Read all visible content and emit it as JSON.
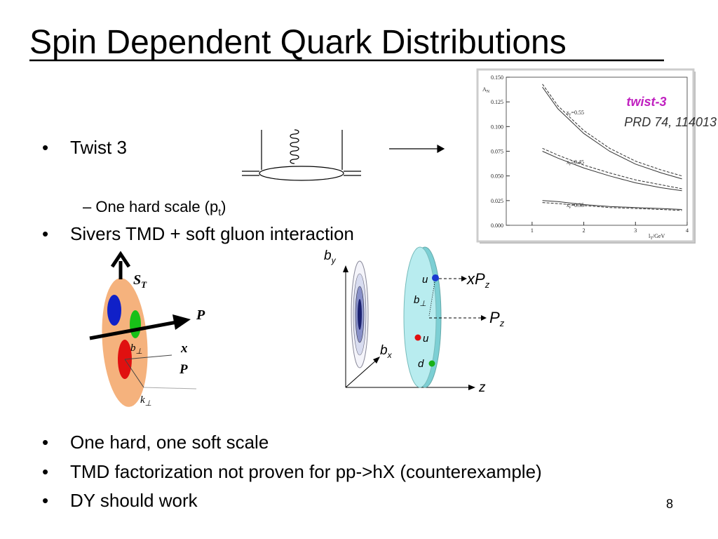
{
  "title": "Spin Dependent Quark Distributions",
  "bullets": [
    "Twist 3",
    "Sivers TMD + soft gluon interaction",
    "One hard, one soft scale",
    "TMD factorization not proven for pp->hX (counterexample)",
    "DY should work"
  ],
  "sub_bullet": [
    "One hard scale (p",
    "t",
    ")"
  ],
  "reference": {
    "label": "twist-3",
    "citation": "PRD 74, 114013"
  },
  "sivers_diagram": {
    "spin": [
      "S",
      "T"
    ],
    "momentum": "P",
    "b_perp": [
      "b",
      "⊥"
    ],
    "x_P": [
      "x",
      "P"
    ],
    "k_perp": [
      "k",
      "⊥"
    ]
  },
  "impact_diagram": {
    "b_y": [
      "b",
      "y"
    ],
    "b_x": [
      "b",
      "x"
    ],
    "z": "z",
    "u_top": "u",
    "xPz": [
      "xP",
      "z"
    ],
    "b_perp": [
      "b",
      "⊥"
    ],
    "Pz": [
      "P",
      "z"
    ],
    "u": "u",
    "d": "d"
  },
  "page_number": "8",
  "chart_data": {
    "type": "line",
    "y_label": [
      "A",
      "N"
    ],
    "x_label": [
      "l",
      "T",
      "/GeV"
    ],
    "xlim": [
      0.5,
      4
    ],
    "ylim": [
      0,
      0.15
    ],
    "xticks": [
      1,
      2,
      3,
      4
    ],
    "yticks": [
      {
        "value": 0,
        "label": "0.000"
      },
      {
        "value": 0.025,
        "label": "0.025"
      },
      {
        "value": 0.05,
        "label": "0.050"
      },
      {
        "value": 0.075,
        "label": "0.075"
      },
      {
        "value": 0.1,
        "label": "0.100"
      },
      {
        "value": 0.125,
        "label": "0.125"
      },
      {
        "value": 0.15,
        "label": "0.150"
      }
    ],
    "x": [
      1.2,
      1.5,
      2,
      2.5,
      3,
      3.5,
      3.9
    ],
    "series": [
      {
        "style": "solid",
        "color": "#333333",
        "values": [
          0.14,
          0.118,
          0.093,
          0.075,
          0.062,
          0.053,
          0.047
        ]
      },
      {
        "style": "dashed",
        "color": "#333333",
        "values": [
          0.143,
          0.121,
          0.096,
          0.078,
          0.065,
          0.056,
          0.05
        ]
      },
      {
        "style": "solid",
        "color": "#333333",
        "values": [
          0.075,
          0.068,
          0.058,
          0.05,
          0.043,
          0.038,
          0.035
        ]
      },
      {
        "style": "dashed",
        "color": "#333333",
        "values": [
          0.078,
          0.071,
          0.061,
          0.053,
          0.046,
          0.041,
          0.037
        ]
      },
      {
        "style": "solid",
        "color": "#333333",
        "values": [
          0.025,
          0.024,
          0.021,
          0.019,
          0.018,
          0.017,
          0.016
        ]
      },
      {
        "style": "dashed",
        "color": "#333333",
        "values": [
          0.023,
          0.022,
          0.02,
          0.018,
          0.017,
          0.016,
          0.015
        ]
      }
    ],
    "curve_labels": [
      [
        "x",
        "F",
        "=0.55"
      ],
      [
        "x",
        "F",
        "=0.45"
      ],
      [
        "x",
        "F",
        "=0.35"
      ]
    ]
  }
}
